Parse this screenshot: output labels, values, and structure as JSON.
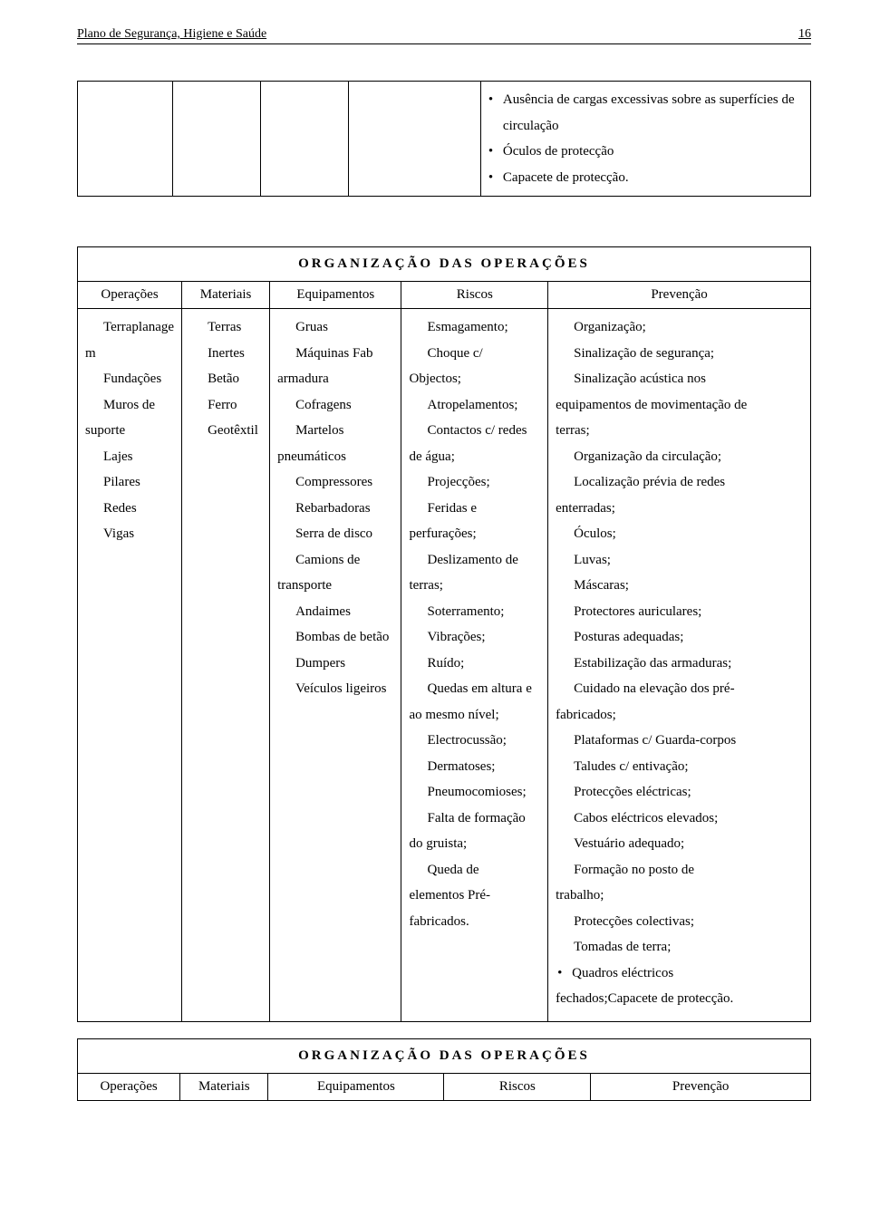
{
  "header": {
    "title": "Plano de Segurança, Higiene e Saúde",
    "page_number": "16"
  },
  "top_table": {
    "bullets": [
      "Ausência de cargas excessivas sobre as superfícies de circulação",
      "Óculos de protecção",
      "Capacete de protecção."
    ]
  },
  "section_title_1": "ORGANIZAÇÃO DAS OPERAÇÕES",
  "columns": {
    "c1": "Operações",
    "c2": "Materiais",
    "c3": "Equipamentos",
    "c4": "Riscos",
    "c5": "Prevenção"
  },
  "operacoes": [
    "Terraplanage",
    "m",
    "Fundações",
    "Muros de",
    "suporte",
    "Lajes",
    "Pilares",
    "Redes",
    "Vigas"
  ],
  "materiais": [
    "Terras",
    "Inertes",
    "Betão",
    "Ferro",
    "Geotêxtil"
  ],
  "equipamentos": [
    "Gruas",
    "Máquinas Fab",
    "armadura",
    "Cofragens",
    "Martelos",
    "pneumáticos",
    "Compressores",
    "Rebarbadoras",
    "Serra de disco",
    "Camions de",
    "transporte",
    "Andaimes",
    "Bombas de betão",
    "Dumpers",
    "Veículos ligeiros"
  ],
  "riscos": [
    "Esmagamento;",
    "Choque c/",
    "Objectos;",
    "Atropelamentos;",
    "Contactos c/ redes",
    "de água;",
    "Projecções;",
    "Feridas e",
    "perfurações;",
    "Deslizamento de",
    "terras;",
    "Soterramento;",
    "Vibrações;",
    "Ruído;",
    "Quedas em altura e",
    "ao mesmo nível;",
    "Electrocussão;",
    "Dermatoses;",
    "Pneumocomioses;",
    "Falta de formação",
    "do gruista;",
    "Queda de",
    "elementos Pré-",
    "fabricados."
  ],
  "prevencao": [
    "Organização;",
    "Sinalização de segurança;",
    "Sinalização acústica nos",
    "equipamentos de movimentação de",
    "terras;",
    "Organização da circulação;",
    "Localização prévia de redes",
    "enterradas;",
    "Óculos;",
    "Luvas;",
    "Máscaras;",
    "Protectores auriculares;",
    "Posturas adequadas;",
    "Estabilização das armaduras;",
    "Cuidado na elevação dos pré-",
    "fabricados;",
    "Plataformas c/ Guarda-corpos",
    "Taludes c/ entivação;",
    "Protecções eléctricas;",
    "Cabos eléctricos elevados;",
    "Vestuário adequado;",
    "Formação no posto de",
    "trabalho;",
    "Protecções colectivas;",
    "Tomadas de terra;"
  ],
  "prevencao_bullet": "Quadros eléctricos",
  "prevencao_tail": "fechados;Capacete de protecção.",
  "section_title_2": "ORGANIZAÇÃO DAS OPERAÇÕES",
  "operacoes_no_indent": [
    1,
    4
  ],
  "equipamentos_no_indent": [
    2,
    5,
    10
  ],
  "riscos_no_indent": [
    2,
    5,
    8,
    10,
    15,
    20,
    22,
    23
  ],
  "prevencao_no_indent": [
    3,
    4,
    7,
    15,
    22
  ]
}
